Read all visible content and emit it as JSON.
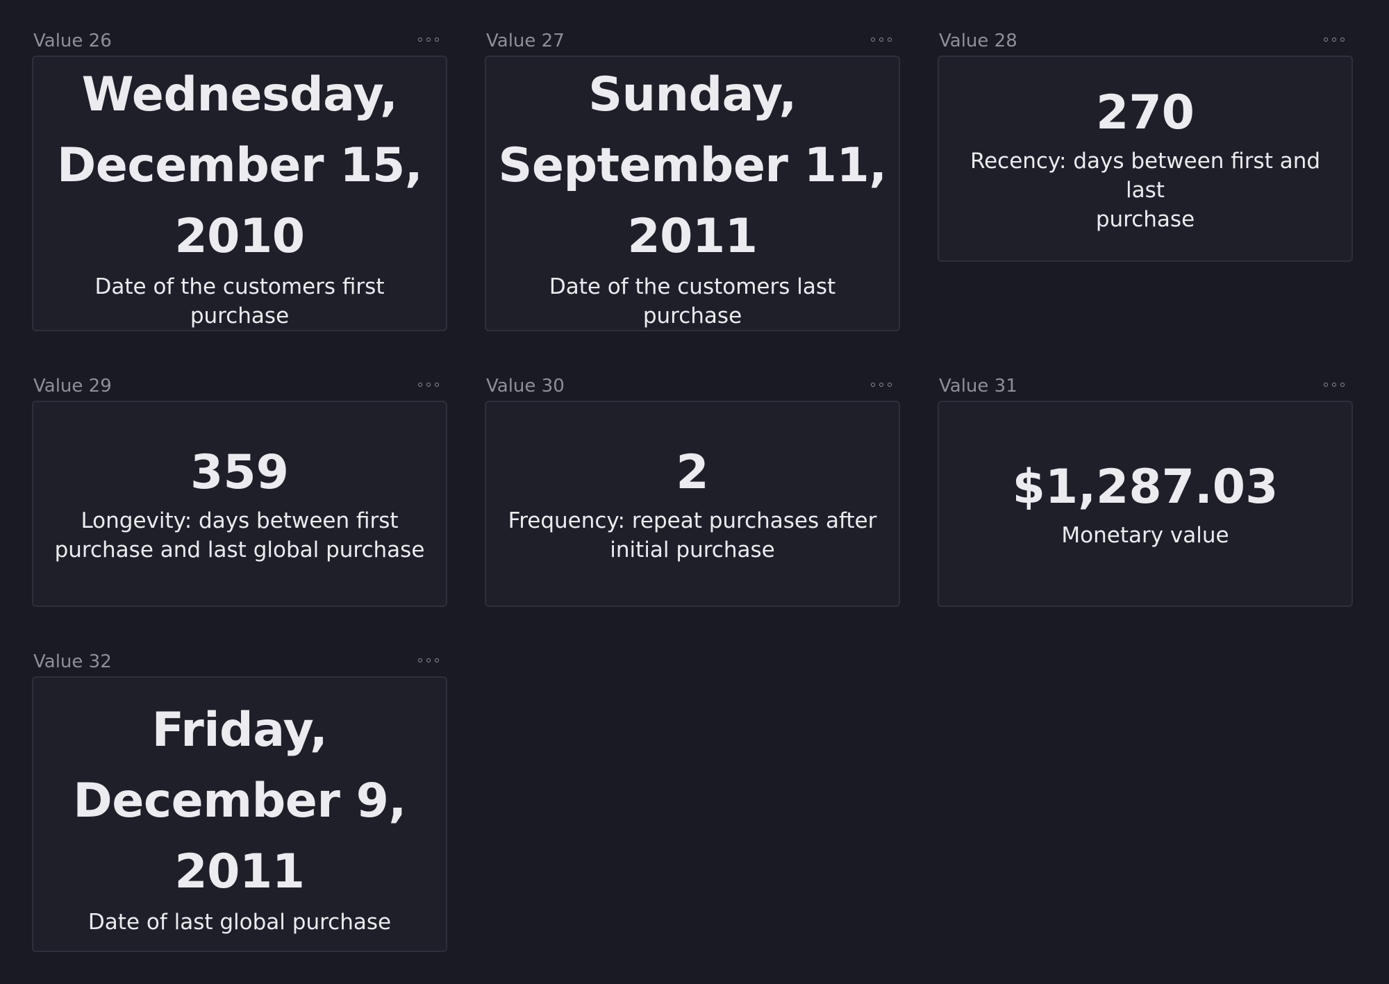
{
  "panels": [
    {
      "title": "Value 26",
      "value_lines": [
        "Wednesday,",
        "December 15,",
        "2010"
      ],
      "description": "Date of the customers first purchase"
    },
    {
      "title": "Value 27",
      "value_lines": [
        "Sunday,",
        "September 11,",
        "2011"
      ],
      "description": "Date of the customers last purchase"
    },
    {
      "title": "Value 28",
      "value": "270",
      "description_lines": [
        "Recency: days between first and last",
        "purchase"
      ]
    },
    {
      "title": "Value 29",
      "value": "359",
      "description_lines": [
        "Longevity: days between first",
        "purchase and last global purchase"
      ]
    },
    {
      "title": "Value 30",
      "value": "2",
      "description_lines": [
        "Frequency: repeat purchases after",
        "initial purchase"
      ]
    },
    {
      "title": "Value 31",
      "value": "$1,287.03",
      "description": "Monetary value"
    },
    {
      "title": "Value 32",
      "value_lines": [
        "Friday,",
        "December 9,",
        "2011"
      ],
      "description": "Date of last global purchase"
    }
  ],
  "icons": {
    "menu": "more-options-icon"
  }
}
